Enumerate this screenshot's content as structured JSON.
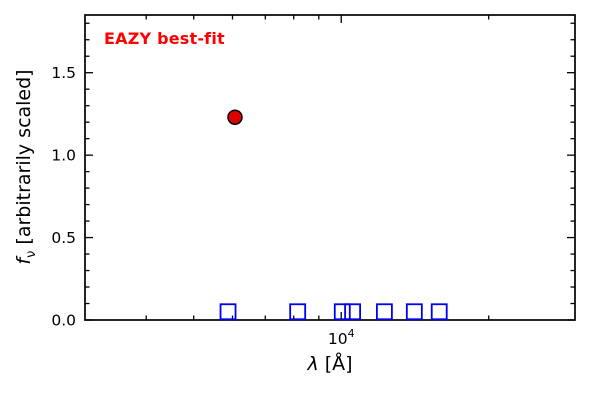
{
  "figure": {
    "annotation": "EAZY best-fit",
    "annotation_color": "#ff0000",
    "ylabel": {
      "symbol": "f",
      "subscript": "ν",
      "rest": " [arbitrarily scaled]"
    },
    "xlabel": {
      "symbol": "λ",
      "rest": " [Å]"
    }
  },
  "chart_data": {
    "type": "scatter",
    "title": "",
    "annotation": "EAZY best-fit",
    "xlabel": "λ [Å]",
    "ylabel": "f_ν [arbitrarily scaled]",
    "x_scale": "log",
    "xlim": [
      3000,
      30000
    ],
    "ylim": [
      0,
      1.85
    ],
    "grid": false,
    "legend": "none",
    "frame_color": "#000000",
    "x_major_ticks": [
      10000
    ],
    "x_major_tick_labels": [
      {
        "base": "10",
        "exp": "4"
      }
    ],
    "x_minor_ticks": [
      4000,
      5000,
      6000,
      7000,
      8000,
      9000,
      20000
    ],
    "y_major_ticks": [
      0.0,
      0.5,
      1.0,
      1.5
    ],
    "y_minor_tick_step": 0.1,
    "series": [
      {
        "name": "best-fit-model-point",
        "marker": "circle",
        "fill": "#dd0000",
        "edge": "#000000",
        "size": 14,
        "points": [
          {
            "x": 6070,
            "y": 1.23
          }
        ]
      },
      {
        "name": "observed-photometry",
        "marker": "square-open",
        "fill": "none",
        "edge": "#0000ee",
        "size": 15,
        "points": [
          {
            "x": 5875,
            "y": 0.05
          },
          {
            "x": 8150,
            "y": 0.05
          },
          {
            "x": 10050,
            "y": 0.05
          },
          {
            "x": 10550,
            "y": 0.05
          },
          {
            "x": 12250,
            "y": 0.05
          },
          {
            "x": 14100,
            "y": 0.05
          },
          {
            "x": 15850,
            "y": 0.05
          }
        ]
      }
    ]
  }
}
